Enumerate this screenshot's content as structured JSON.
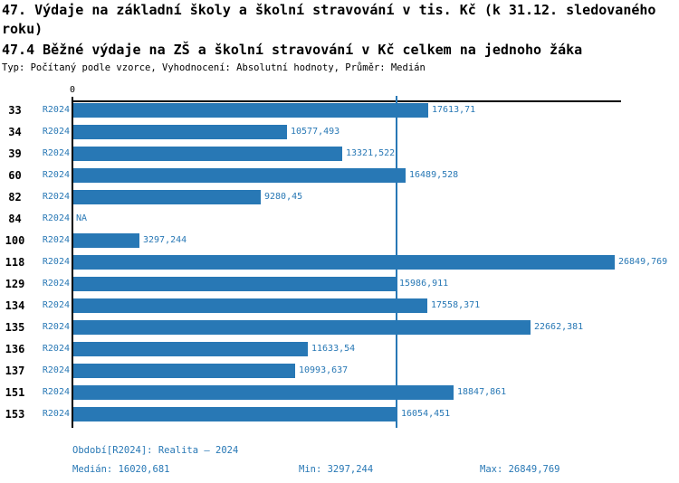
{
  "header": {
    "title": "47. Výdaje na základní školy a školní stravování v tis. Kč (k 31.12. sledovaného roku)",
    "subtitle": "47.4 Běžné výdaje na ZŠ a školní stravování v Kč celkem na jednoho žáka",
    "meta": "Typ: Počítaný podle vzorce, Vyhodnocení: Absolutní hodnoty, Průměr: Medián"
  },
  "chart_data": {
    "type": "bar",
    "orientation": "horizontal",
    "axis_zero_label": "0",
    "series_label": "R2024",
    "categories": [
      "33",
      "34",
      "39",
      "60",
      "82",
      "84",
      "100",
      "118",
      "129",
      "134",
      "135",
      "136",
      "137",
      "151",
      "153"
    ],
    "values": [
      17613.71,
      10577.493,
      13321.522,
      16489.528,
      9280.45,
      null,
      3297.244,
      26849.769,
      15986.911,
      17558.371,
      22662.381,
      11633.54,
      10993.637,
      18847.861,
      16054.451
    ],
    "value_labels": [
      "17613,71",
      "10577,493",
      "13321,522",
      "16489,528",
      "9280,45",
      "NA",
      "3297,244",
      "26849,769",
      "15986,911",
      "17558,371",
      "22662,381",
      "11633,54",
      "10993,637",
      "18847,861",
      "16054,451"
    ],
    "na_label": "NA",
    "xlim": [
      0,
      26849.769
    ],
    "median_value": 16020.681,
    "bar_color": "#2878b5",
    "median_line_color": "#2878b5",
    "grid": false,
    "legend": "none"
  },
  "footer": {
    "period": "Období[R2024]: Realita – 2024",
    "median": "Medián: 16020,681",
    "min": "Min: 3297,244",
    "max": "Max: 26849,769"
  },
  "colors": {
    "accent_blue": "#2878b5",
    "text_black": "#000000"
  }
}
